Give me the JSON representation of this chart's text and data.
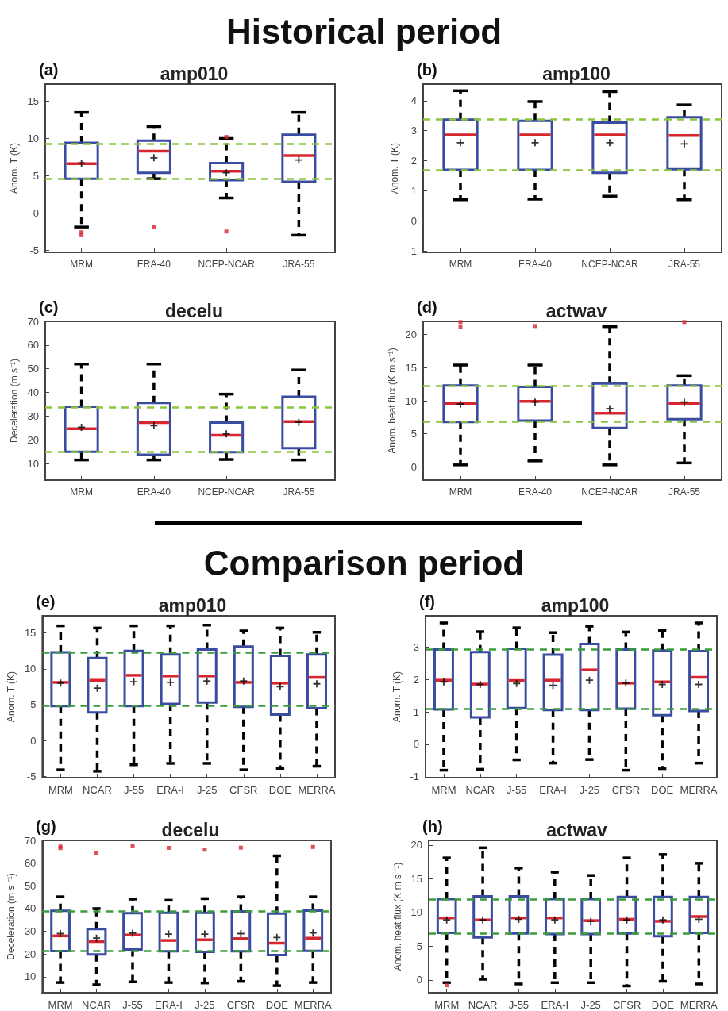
{
  "chart_data": [
    {
      "type": "box",
      "title": "amp010",
      "ylabel": "Anom. T (K)",
      "annotations": [
        "(a)",
        "Historical period"
      ],
      "categories": [
        "MRM",
        "ERA-40",
        "NCEP-NCAR",
        "JRA-55"
      ],
      "ylim": [
        -5.3,
        17.3
      ],
      "yticks": [
        -5,
        0,
        5,
        10,
        15
      ],
      "ref_lines": [
        {
          "axis": "y",
          "value": 9.3,
          "color": "#8cc63f",
          "line_style": "dashed"
        },
        {
          "axis": "y",
          "value": 4.6,
          "color": "#8cc63f",
          "line_style": "dashed"
        }
      ],
      "series": [
        {
          "color": "#3a4ca0",
          "boxes": [
            {
              "low": -1.9,
              "q1": 4.6,
              "median": 6.6,
              "q3": 9.4,
              "high": 13.5,
              "mean": 6.7,
              "outliers": [
                -2.6,
                -3.0
              ]
            },
            {
              "low": 4.6,
              "q1": 5.4,
              "median": 8.3,
              "q3": 9.7,
              "high": 11.6,
              "mean": 7.4,
              "outliers": [
                -1.9
              ]
            },
            {
              "low": 2.0,
              "q1": 4.4,
              "median": 5.6,
              "q3": 6.7,
              "high": 10.0,
              "mean": 5.4,
              "outliers": [
                10.2,
                -2.5
              ]
            },
            {
              "low": -3.0,
              "q1": 4.2,
              "median": 7.7,
              "q3": 10.5,
              "high": 13.5,
              "mean": 7.1
            }
          ]
        }
      ]
    },
    {
      "type": "box",
      "title": "amp100",
      "ylabel": "Anom. T (K)",
      "annotations": [
        "(b)"
      ],
      "categories": [
        "MRM",
        "ERA-40",
        "NCEP-NCAR",
        "JRA-55"
      ],
      "ylim": [
        -1.05,
        4.55
      ],
      "yticks": [
        -1,
        0,
        1,
        2,
        3,
        4
      ],
      "ref_lines": [
        {
          "axis": "y",
          "value": 3.38,
          "color": "#8cc63f",
          "line_style": "dashed"
        },
        {
          "axis": "y",
          "value": 1.69,
          "color": "#8cc63f",
          "line_style": "dashed"
        }
      ],
      "series": [
        {
          "color": "#3a4ca0",
          "boxes": [
            {
              "low": 0.7,
              "q1": 1.7,
              "median": 2.86,
              "q3": 3.37,
              "high": 4.33,
              "mean": 2.6
            },
            {
              "low": 0.72,
              "q1": 1.7,
              "median": 2.86,
              "q3": 3.33,
              "high": 3.97,
              "mean": 2.6
            },
            {
              "low": 0.82,
              "q1": 1.6,
              "median": 2.86,
              "q3": 3.27,
              "high": 4.3,
              "mean": 2.6
            },
            {
              "low": 0.7,
              "q1": 1.72,
              "median": 2.84,
              "q3": 3.45,
              "high": 3.86,
              "mean": 2.56
            }
          ]
        }
      ]
    },
    {
      "type": "box",
      "title": "decelu",
      "ylabel": "Deceleration (m s⁻¹)",
      "annotations": [
        "(c)"
      ],
      "categories": [
        "MRM",
        "ERA-40",
        "NCEP-NCAR",
        "JRA-55"
      ],
      "ylim": [
        3,
        70
      ],
      "yticks": [
        10,
        20,
        30,
        40,
        50,
        60,
        70
      ],
      "ref_lines": [
        {
          "axis": "y",
          "value": 33.7,
          "color": "#8cc63f",
          "line_style": "dashed"
        },
        {
          "axis": "y",
          "value": 14.9,
          "color": "#8cc63f",
          "line_style": "dashed"
        }
      ],
      "series": [
        {
          "color": "#3a4ca0",
          "boxes": [
            {
              "low": 11.5,
              "q1": 15,
              "median": 24.7,
              "q3": 34,
              "high": 52,
              "mean": 25.3
            },
            {
              "low": 11.5,
              "q1": 13.7,
              "median": 27.3,
              "q3": 35.6,
              "high": 52,
              "mean": 26
            },
            {
              "low": 11.7,
              "q1": 14.8,
              "median": 21.9,
              "q3": 27.3,
              "high": 39.3,
              "mean": 22.5
            },
            {
              "low": 11.5,
              "q1": 16.5,
              "median": 27.7,
              "q3": 38.2,
              "high": 49.5,
              "mean": 27.4
            }
          ]
        }
      ]
    },
    {
      "type": "box",
      "title": "actwav",
      "ylabel": "Anom. heat flux (K m s⁻¹)",
      "annotations": [
        "(d)"
      ],
      "categories": [
        "MRM",
        "ERA-40",
        "NCEP-NCAR",
        "JRA-55"
      ],
      "ylim": [
        -2,
        22
      ],
      "yticks": [
        0,
        5,
        10,
        15,
        20
      ],
      "ref_lines": [
        {
          "axis": "y",
          "value": 12.3,
          "color": "#8cc63f",
          "line_style": "dashed"
        },
        {
          "axis": "y",
          "value": 6.8,
          "color": "#8cc63f",
          "line_style": "dashed"
        }
      ],
      "series": [
        {
          "color": "#3a4ca0",
          "boxes": [
            {
              "low": 0.3,
              "q1": 6.8,
              "median": 9.6,
              "q3": 12.3,
              "high": 15.4,
              "mean": 9.5,
              "outliers": [
                21.9,
                21.2
              ]
            },
            {
              "low": 0.9,
              "q1": 7.0,
              "median": 9.9,
              "q3": 12.1,
              "high": 15.4,
              "mean": 9.8,
              "outliers": [
                21.3
              ]
            },
            {
              "low": 0.3,
              "q1": 5.9,
              "median": 8.1,
              "q3": 12.6,
              "high": 21.2,
              "mean": 8.8
            },
            {
              "low": 0.6,
              "q1": 7.2,
              "median": 9.6,
              "q3": 12.3,
              "high": 13.8,
              "mean": 9.8,
              "outliers": [
                21.9
              ]
            }
          ]
        }
      ]
    },
    {
      "type": "box",
      "title": "amp010",
      "ylabel": "Anom. T (K)",
      "annotations": [
        "(e)",
        "Comparison period"
      ],
      "categories": [
        "MRM",
        "NCAR",
        "J-55",
        "ERA-I",
        "J-25",
        "CFSR",
        "DOE",
        "MERRA"
      ],
      "ylim": [
        -5.2,
        17.4
      ],
      "yticks": [
        -5,
        0,
        5,
        10,
        15
      ],
      "ref_lines": [
        {
          "axis": "y",
          "value": 12.3,
          "color": "#3a9d3a",
          "line_style": "dashed"
        },
        {
          "axis": "y",
          "value": 4.8,
          "color": "#3a9d3a",
          "line_style": "dashed"
        }
      ],
      "series": [
        {
          "color": "#3a4ca0",
          "boxes": [
            {
              "low": -4.1,
              "q1": 4.8,
              "median": 8.1,
              "q3": 12.3,
              "high": 16.0,
              "mean": 8.0
            },
            {
              "low": -4.3,
              "q1": 3.9,
              "median": 8.4,
              "q3": 11.5,
              "high": 15.7,
              "mean": 7.3
            },
            {
              "low": -3.4,
              "q1": 4.8,
              "median": 9.1,
              "q3": 12.5,
              "high": 16.0,
              "mean": 8.2
            },
            {
              "low": -3.2,
              "q1": 5.1,
              "median": 9.0,
              "q3": 12.0,
              "high": 16.0,
              "mean": 8.1
            },
            {
              "low": -3.2,
              "q1": 5.3,
              "median": 9.0,
              "q3": 12.7,
              "high": 16.1,
              "mean": 8.3
            },
            {
              "low": -4.1,
              "q1": 4.7,
              "median": 8.1,
              "q3": 13.1,
              "high": 15.3,
              "mean": 8.3
            },
            {
              "low": -3.9,
              "q1": 3.6,
              "median": 8.0,
              "q3": 11.8,
              "high": 15.7,
              "mean": 7.5
            },
            {
              "low": -3.6,
              "q1": 4.5,
              "median": 8.8,
              "q3": 12.0,
              "high": 15.1,
              "mean": 7.9
            }
          ]
        }
      ]
    },
    {
      "type": "box",
      "title": "amp100",
      "ylabel": "Anom. T (K)",
      "annotations": [
        "(f)"
      ],
      "categories": [
        "MRM",
        "NCAR",
        "J-55",
        "ERA-I",
        "J-25",
        "CFSR",
        "DOE",
        "MERRA"
      ],
      "ylim": [
        -1.03,
        3.97
      ],
      "yticks": [
        -1,
        0,
        1,
        2,
        3
      ],
      "ref_lines": [
        {
          "axis": "y",
          "value": 2.93,
          "color": "#3a9d3a",
          "line_style": "dashed"
        },
        {
          "axis": "y",
          "value": 1.1,
          "color": "#3a9d3a",
          "line_style": "dashed"
        }
      ],
      "series": [
        {
          "color": "#3a4ca0",
          "boxes": [
            {
              "low": -0.8,
              "q1": 1.08,
              "median": 1.98,
              "q3": 2.93,
              "high": 3.75,
              "mean": 1.93
            },
            {
              "low": -0.77,
              "q1": 0.83,
              "median": 1.86,
              "q3": 2.85,
              "high": 3.48,
              "mean": 1.85
            },
            {
              "low": -0.48,
              "q1": 1.12,
              "median": 1.97,
              "q3": 2.95,
              "high": 3.6,
              "mean": 1.88
            },
            {
              "low": -0.58,
              "q1": 1.06,
              "median": 1.98,
              "q3": 2.77,
              "high": 3.45,
              "mean": 1.82
            },
            {
              "low": -0.47,
              "q1": 1.06,
              "median": 2.3,
              "q3": 3.1,
              "high": 3.65,
              "mean": 1.98
            },
            {
              "low": -0.8,
              "q1": 1.1,
              "median": 1.89,
              "q3": 2.93,
              "high": 3.47,
              "mean": 1.89
            },
            {
              "low": -0.75,
              "q1": 0.9,
              "median": 1.93,
              "q3": 2.9,
              "high": 3.52,
              "mean": 1.85
            },
            {
              "low": -0.58,
              "q1": 1.03,
              "median": 2.07,
              "q3": 2.88,
              "high": 3.75,
              "mean": 1.85
            }
          ]
        }
      ]
    },
    {
      "type": "box",
      "title": "decelu",
      "ylabel": "Deceleration (m s ⁻¹)",
      "annotations": [
        "(g)"
      ],
      "categories": [
        "MRM",
        "NCAR",
        "J-55",
        "ERA-I",
        "J-25",
        "CFSR",
        "DOE",
        "MERRA"
      ],
      "ylim": [
        3,
        70
      ],
      "yticks": [
        10,
        20,
        30,
        40,
        50,
        60,
        70
      ],
      "ref_lines": [
        {
          "axis": "y",
          "value": 39,
          "color": "#3a9d3a",
          "line_style": "dashed"
        },
        {
          "axis": "y",
          "value": 21.3,
          "color": "#3a9d3a",
          "line_style": "dashed"
        }
      ],
      "series": [
        {
          "color": "#3a4ca0",
          "boxes": [
            {
              "low": 7.5,
              "q1": 21.3,
              "median": 28,
              "q3": 39,
              "high": 45.2,
              "mean": 29,
              "outliers": [
                67.3,
                66.6
              ]
            },
            {
              "low": 6.5,
              "q1": 19.8,
              "median": 25.5,
              "q3": 31,
              "high": 40,
              "mean": 27,
              "outliers": [
                64.3
              ]
            },
            {
              "low": 7.8,
              "q1": 22,
              "median": 28.4,
              "q3": 38,
              "high": 44.2,
              "mean": 29.2,
              "outliers": [
                67.4
              ]
            },
            {
              "low": 7.5,
              "q1": 21.2,
              "median": 26,
              "q3": 38.2,
              "high": 43.7,
              "mean": 28.8,
              "outliers": [
                66.7
              ]
            },
            {
              "low": 7.3,
              "q1": 21,
              "median": 26.3,
              "q3": 38.2,
              "high": 44.4,
              "mean": 28.8,
              "outliers": [
                65.9
              ]
            },
            {
              "low": 8,
              "q1": 21.2,
              "median": 26.8,
              "q3": 38.8,
              "high": 45.2,
              "mean": 29,
              "outliers": [
                66.8
              ]
            },
            {
              "low": 6.1,
              "q1": 19.6,
              "median": 24.8,
              "q3": 37.8,
              "high": 63.2,
              "mean": 27.3
            },
            {
              "low": 7.5,
              "q1": 21.4,
              "median": 27,
              "q3": 39.1,
              "high": 45.2,
              "mean": 29.3,
              "outliers": [
                67.1
              ]
            }
          ]
        }
      ]
    },
    {
      "type": "box",
      "title": "actwav",
      "ylabel": "Anom. heat flux (K m s ⁻¹)",
      "annotations": [
        "(h)"
      ],
      "categories": [
        "MRM",
        "NCAR",
        "J-55",
        "ERA-I",
        "J-25",
        "CFSR",
        "DOE",
        "MERRA"
      ],
      "ylim": [
        -1.9,
        20.7
      ],
      "yticks": [
        0,
        5,
        10,
        15,
        20
      ],
      "ref_lines": [
        {
          "axis": "y",
          "value": 12.0,
          "color": "#3a9d3a",
          "line_style": "dashed"
        },
        {
          "axis": "y",
          "value": 6.9,
          "color": "#3a9d3a",
          "line_style": "dashed"
        }
      ],
      "series": [
        {
          "color": "#3a4ca0",
          "boxes": [
            {
              "low": -0.4,
              "q1": 7.0,
              "median": 9.2,
              "q3": 12.0,
              "high": 18.1,
              "mean": 8.9,
              "outliers": [
                -0.8
              ]
            },
            {
              "low": 0.1,
              "q1": 6.3,
              "median": 8.9,
              "q3": 12.4,
              "high": 19.6,
              "mean": 8.9
            },
            {
              "low": -0.6,
              "q1": 6.9,
              "median": 9.2,
              "q3": 12.4,
              "high": 16.6,
              "mean": 9.0
            },
            {
              "low": -0.4,
              "q1": 6.8,
              "median": 9.2,
              "q3": 12.0,
              "high": 16.0,
              "mean": 8.9
            },
            {
              "low": -0.4,
              "q1": 6.8,
              "median": 8.8,
              "q3": 12.0,
              "high": 15.5,
              "mean": 8.7
            },
            {
              "low": -0.9,
              "q1": 6.9,
              "median": 9.0,
              "q3": 12.3,
              "high": 18.1,
              "mean": 8.9
            },
            {
              "low": -0.2,
              "q1": 6.5,
              "median": 8.7,
              "q3": 12.3,
              "high": 18.6,
              "mean": 8.9
            },
            {
              "low": -0.6,
              "q1": 7.0,
              "median": 9.4,
              "q3": 12.3,
              "high": 17.3,
              "mean": 9.0
            }
          ]
        }
      ]
    }
  ]
}
